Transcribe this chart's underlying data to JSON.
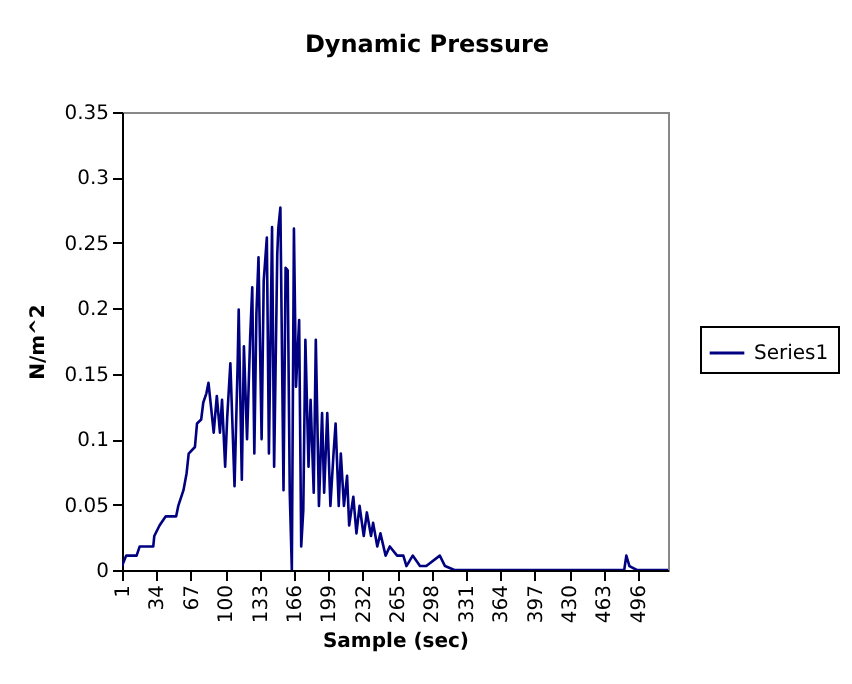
{
  "chart_data": {
    "type": "line",
    "title": "Dynamic Pressure",
    "xlabel": "Sample (sec)",
    "ylabel": "N/m^2",
    "legend": "right",
    "grid": false,
    "xlim": [
      1,
      525
    ],
    "xticks": [
      1,
      34,
      67,
      100,
      133,
      166,
      199,
      232,
      265,
      298,
      331,
      364,
      397,
      430,
      463,
      496
    ],
    "ylim": [
      0,
      0.35
    ],
    "yticks": [
      0,
      0.05,
      0.1,
      0.15,
      0.2,
      0.25,
      0.3,
      0.35
    ],
    "series": [
      {
        "name": "Series1",
        "color": "#000080",
        "x": [
          1,
          5,
          15,
          18,
          31,
          32,
          37,
          43,
          53,
          55,
          60,
          63,
          65,
          71,
          73,
          77,
          79,
          82,
          84,
          86,
          89,
          92,
          95,
          97,
          100,
          102,
          105,
          109,
          112,
          113,
          116,
          118,
          121,
          124,
          126,
          128,
          130,
          132,
          135,
          137,
          140,
          142,
          145,
          147,
          150,
          151,
          153,
          156,
          158,
          160,
          162,
          164,
          166,
          168,
          171,
          173,
          175,
          177,
          180,
          182,
          185,
          187,
          190,
          193,
          195,
          198,
          201,
          204,
          206,
          209,
          211,
          214,
          217,
          219,
          223,
          226,
          229,
          233,
          236,
          240,
          242,
          246,
          249,
          254,
          258,
          265,
          271,
          274,
          280,
          287,
          293,
          306,
          311,
          320,
          332,
          400,
          483,
          485,
          488,
          495,
          525
        ],
        "values": [
          0.003,
          0.011,
          0.011,
          0.018,
          0.018,
          0.026,
          0.034,
          0.041,
          0.041,
          0.049,
          0.061,
          0.074,
          0.089,
          0.094,
          0.112,
          0.115,
          0.128,
          0.135,
          0.143,
          0.128,
          0.105,
          0.133,
          0.105,
          0.13,
          0.079,
          0.117,
          0.158,
          0.064,
          0.158,
          0.199,
          0.069,
          0.171,
          0.1,
          0.178,
          0.216,
          0.089,
          0.196,
          0.239,
          0.1,
          0.221,
          0.254,
          0.089,
          0.262,
          0.079,
          0.241,
          0.261,
          0.277,
          0.061,
          0.231,
          0.229,
          0.059,
          0,
          0.261,
          0.14,
          0.191,
          0.018,
          0.046,
          0.176,
          0.079,
          0.13,
          0.059,
          0.176,
          0.049,
          0.12,
          0.059,
          0.12,
          0.049,
          0.089,
          0.112,
          0.049,
          0.089,
          0.049,
          0.072,
          0.034,
          0.056,
          0.028,
          0.049,
          0.026,
          0.044,
          0.026,
          0.036,
          0.018,
          0.028,
          0.011,
          0.018,
          0.011,
          0.011,
          0.003,
          0.011,
          0.003,
          0.003,
          0.011,
          0.003,
          0,
          0,
          0,
          0,
          0.011,
          0.003,
          0,
          0
        ]
      }
    ]
  }
}
